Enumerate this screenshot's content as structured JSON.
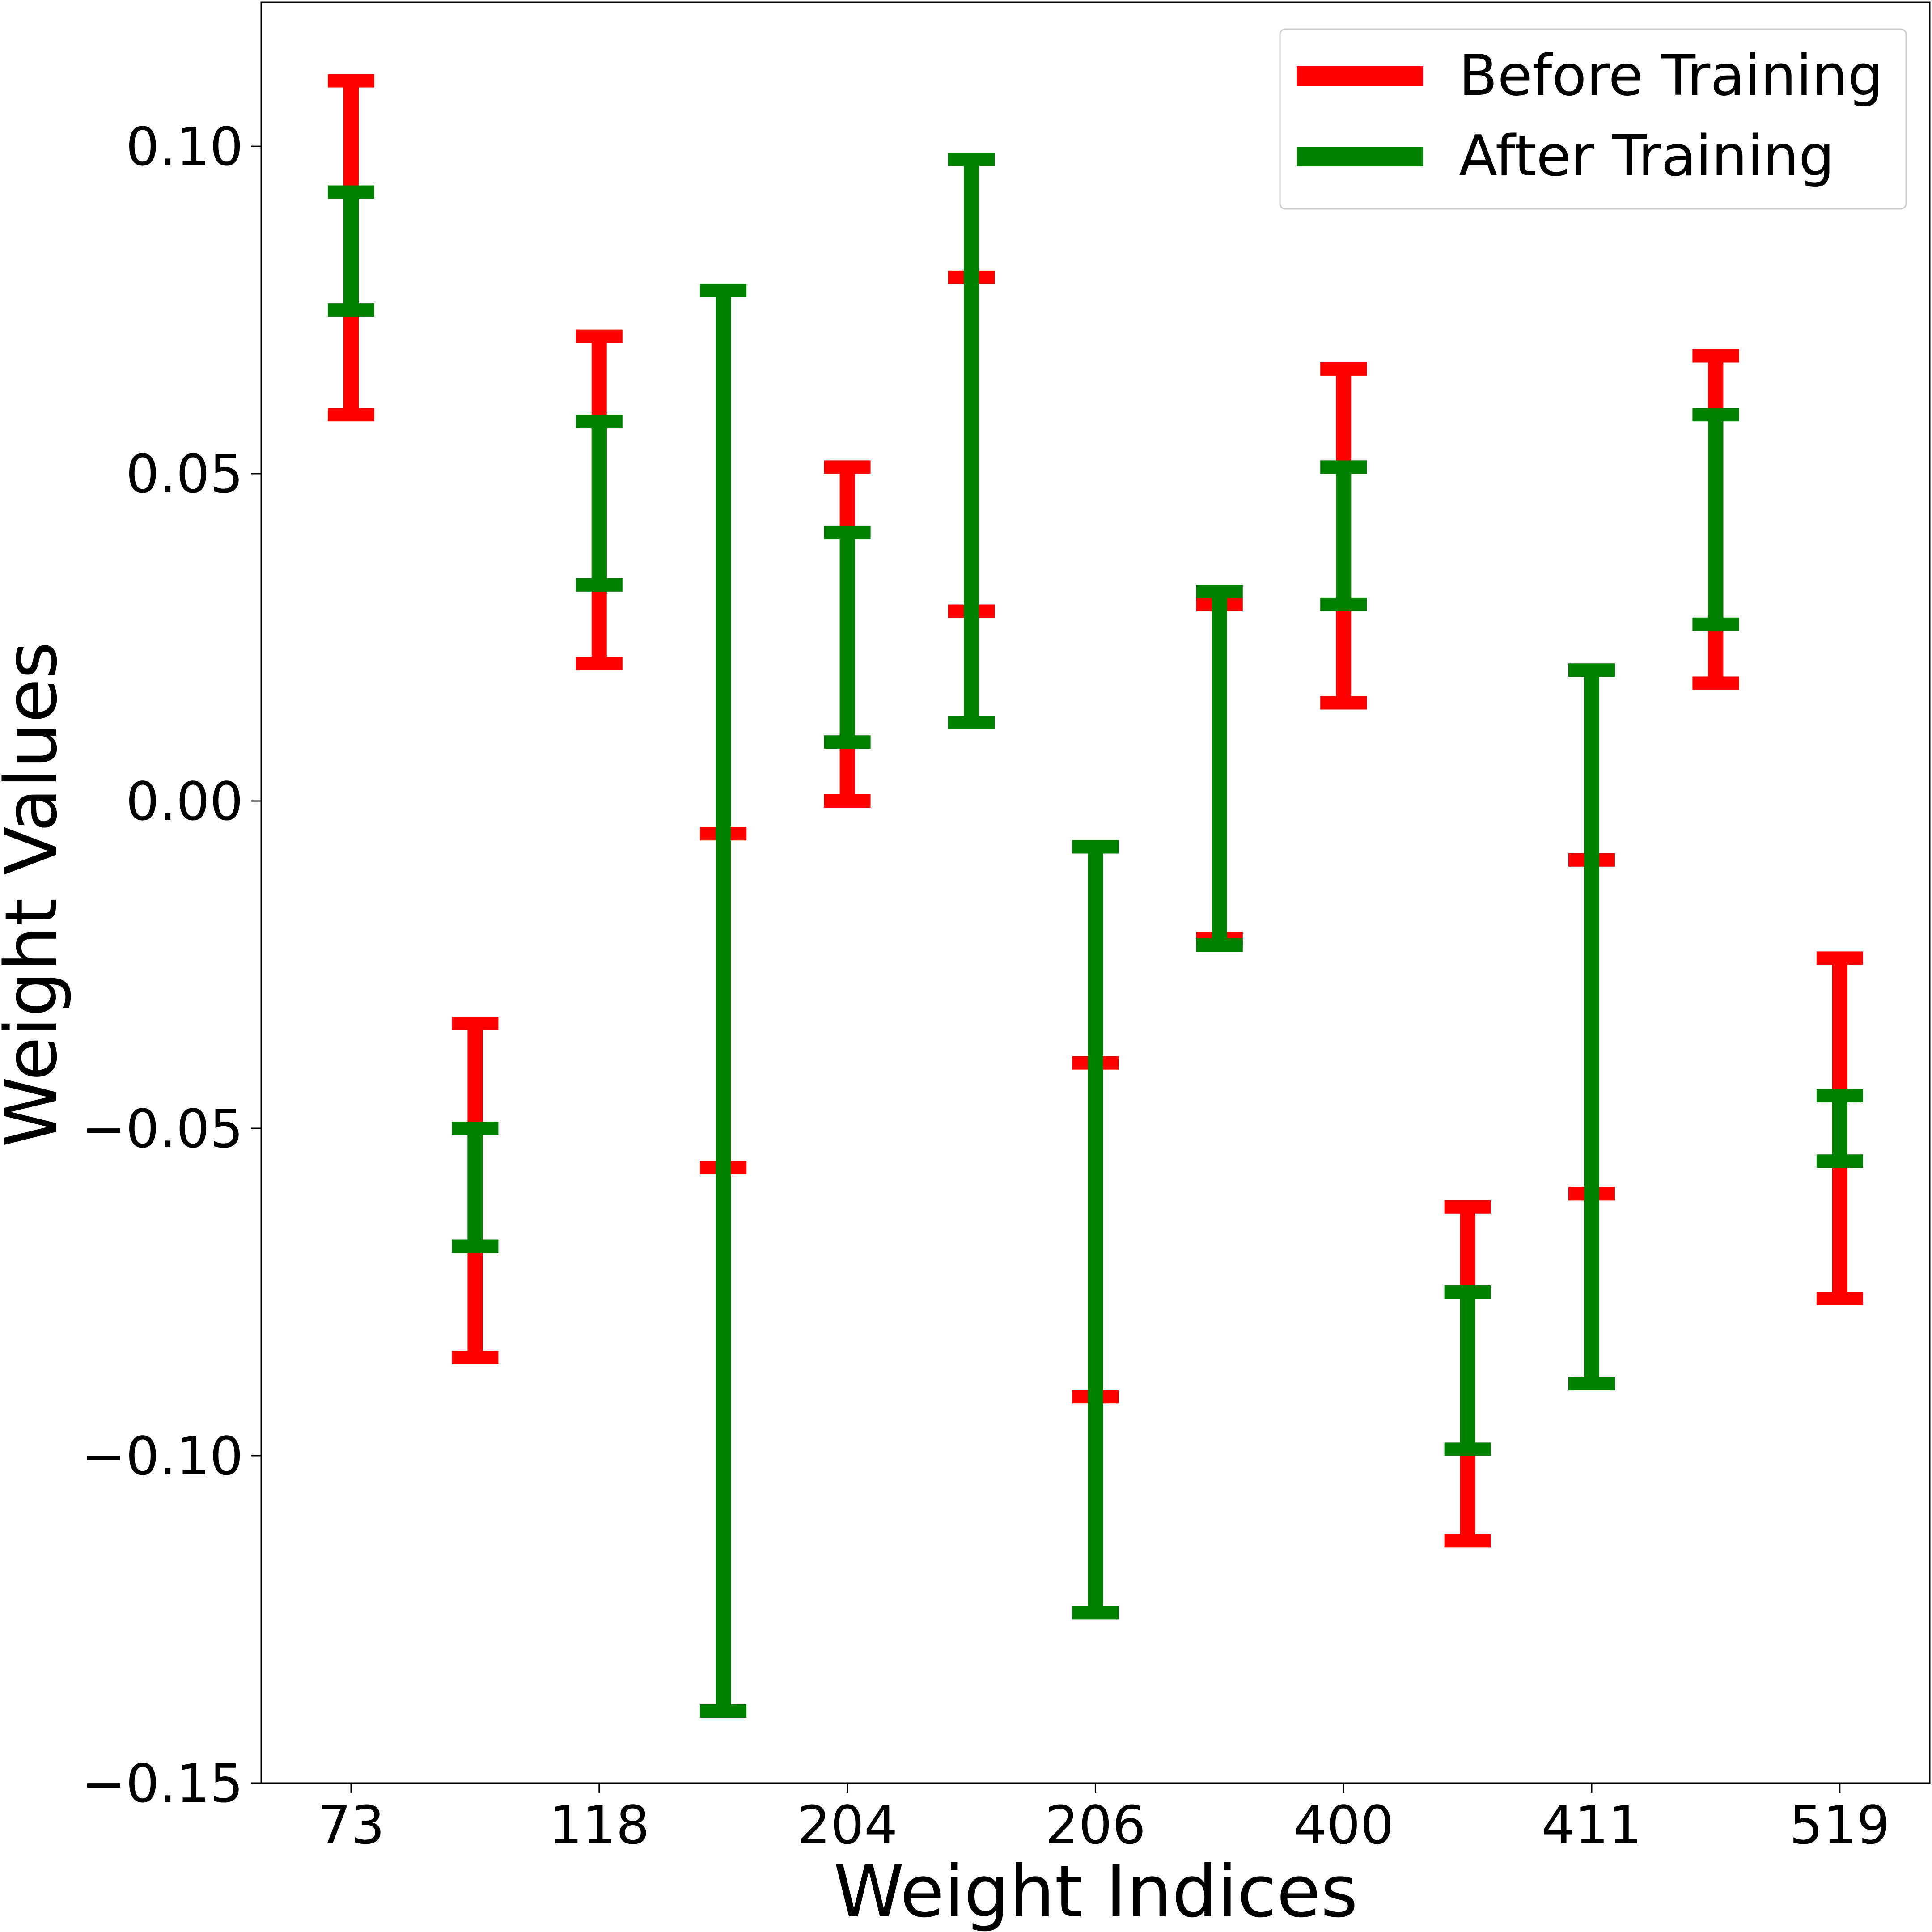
{
  "chart_data": {
    "type": "errorbar",
    "xlabel": "Weight Indices",
    "ylabel": "Weight Values",
    "ylim": [
      -0.15,
      0.122
    ],
    "yticks": [
      0.1,
      0.05,
      0.0,
      -0.05,
      -0.1,
      -0.15
    ],
    "ytick_labels": [
      "0.10",
      "0.05",
      "0.00",
      "−0.05",
      "−0.10",
      "−0.15"
    ],
    "xtick_labels": [
      "73",
      "118",
      "204",
      "206",
      "400",
      "411",
      "519"
    ],
    "grid": false,
    "legend_position": "top-right",
    "series": [
      {
        "name": "Before Training",
        "color": "#ff0000",
        "ranges": [
          [
            0.059,
            0.11
          ],
          [
            -0.085,
            -0.034
          ],
          [
            0.021,
            0.071
          ],
          [
            -0.056,
            -0.005
          ],
          [
            0.0,
            0.051
          ],
          [
            0.029,
            0.08
          ],
          [
            -0.091,
            -0.04
          ],
          [
            -0.021,
            0.03
          ],
          [
            0.015,
            0.066
          ],
          [
            -0.113,
            -0.062
          ],
          [
            -0.06,
            -0.009
          ],
          [
            0.018,
            0.068
          ],
          [
            -0.076,
            -0.024
          ]
        ]
      },
      {
        "name": "After Training",
        "color": "#008000",
        "ranges": [
          [
            0.075,
            0.093
          ],
          [
            -0.068,
            -0.05
          ],
          [
            0.033,
            0.058
          ],
          [
            -0.139,
            0.078
          ],
          [
            0.009,
            0.041
          ],
          [
            0.012,
            0.098
          ],
          [
            -0.124,
            -0.007
          ],
          [
            -0.022,
            0.032
          ],
          [
            0.03,
            0.051
          ],
          [
            -0.099,
            -0.075
          ],
          [
            -0.089,
            0.02
          ],
          [
            0.027,
            0.059
          ],
          [
            -0.055,
            -0.045
          ]
        ]
      }
    ]
  }
}
